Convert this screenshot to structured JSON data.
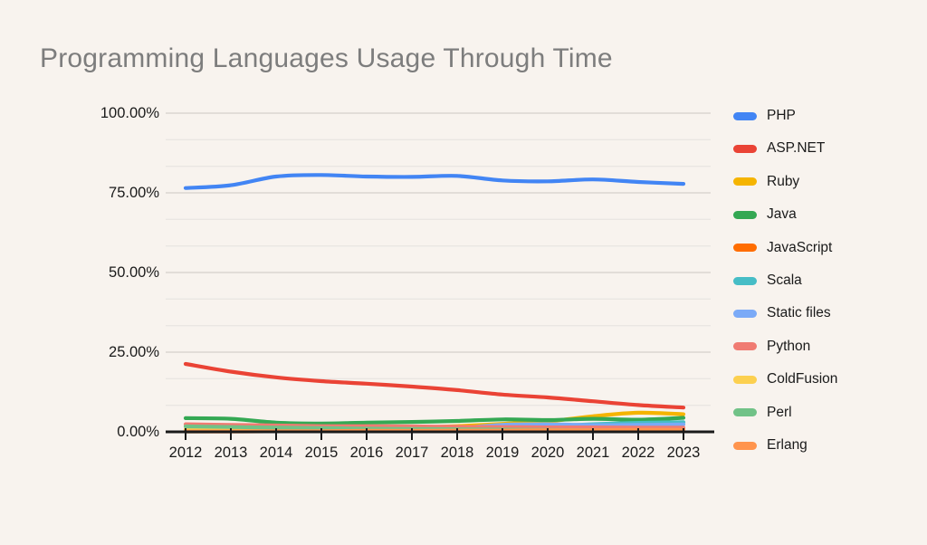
{
  "page": {
    "background_color": "#F8F3EE",
    "text_color": "#1A1A1A"
  },
  "chart_data": {
    "type": "line",
    "title": "Programming Languages Usage Through Time",
    "title_color": "#7D7D7D",
    "smooth": true,
    "grid": {
      "major_color": "#DAD6D1",
      "minor_color": "#EAE6E2",
      "minor_divisions_per_major": 3
    },
    "axis_color": "#1A1A1A",
    "legend_position": "right",
    "ylim": [
      0,
      100
    ],
    "y_ticks": [
      {
        "label": "100.00%",
        "value": 100
      },
      {
        "label": "75.00%",
        "value": 75
      },
      {
        "label": "50.00%",
        "value": 50
      },
      {
        "label": "25.00%",
        "value": 25
      },
      {
        "label": "0.00%",
        "value": 0
      }
    ],
    "categories": [
      "2012",
      "2013",
      "2014",
      "2015",
      "2016",
      "2017",
      "2018",
      "2019",
      "2020",
      "2021",
      "2022",
      "2023"
    ],
    "series": [
      {
        "name": "PHP",
        "color": "#4285F4",
        "values": [
          76.5,
          77.4,
          80.1,
          80.6,
          80.1,
          80.0,
          80.3,
          78.9,
          78.6,
          79.2,
          78.4,
          77.8
        ]
      },
      {
        "name": "ASP.NET",
        "color": "#EA4335",
        "values": [
          21.3,
          18.9,
          17.1,
          15.9,
          15.1,
          14.2,
          13.1,
          11.7,
          10.8,
          9.6,
          8.4,
          7.6
        ]
      },
      {
        "name": "Ruby",
        "color": "#F5B400",
        "values": [
          0.6,
          0.7,
          0.8,
          1.0,
          1.1,
          1.3,
          1.8,
          2.5,
          3.3,
          4.9,
          6.0,
          5.5
        ]
      },
      {
        "name": "Java",
        "color": "#34A853",
        "values": [
          4.3,
          4.1,
          2.9,
          2.6,
          2.9,
          3.1,
          3.4,
          3.9,
          3.7,
          4.1,
          3.8,
          4.4
        ]
      },
      {
        "name": "JavaScript",
        "color": "#FF6D01",
        "values": [
          0.2,
          0.2,
          0.3,
          0.4,
          0.4,
          0.5,
          0.6,
          0.7,
          0.7,
          0.8,
          0.9,
          1.0
        ]
      },
      {
        "name": "Scala",
        "color": "#46BDC6",
        "values": [
          0.1,
          0.2,
          0.2,
          0.3,
          0.5,
          0.7,
          1.0,
          1.4,
          1.8,
          2.4,
          2.8,
          3.0
        ]
      },
      {
        "name": "Static files",
        "color": "#7BAAF7",
        "values": [
          0.2,
          0.3,
          0.4,
          0.5,
          0.7,
          0.9,
          1.2,
          2.2,
          2.4,
          2.1,
          2.2,
          2.3
        ]
      },
      {
        "name": "Python",
        "color": "#F07B72",
        "values": [
          2.4,
          2.2,
          2.0,
          1.8,
          1.8,
          1.7,
          1.6,
          1.5,
          1.4,
          1.4,
          1.3,
          1.3
        ]
      },
      {
        "name": "ColdFusion",
        "color": "#FCD04F",
        "values": [
          0.8,
          0.8,
          0.7,
          0.7,
          0.6,
          0.6,
          0.5,
          0.5,
          0.4,
          0.4,
          0.3,
          0.3
        ]
      },
      {
        "name": "Perl",
        "color": "#71C287",
        "values": [
          1.7,
          1.5,
          1.3,
          1.2,
          1.0,
          0.9,
          0.8,
          0.7,
          0.6,
          0.5,
          0.4,
          0.3
        ]
      },
      {
        "name": "Erlang",
        "color": "#FF944D",
        "values": [
          0.1,
          0.1,
          0.2,
          0.2,
          0.3,
          0.3,
          0.4,
          0.4,
          0.5,
          0.5,
          0.6,
          0.6
        ]
      }
    ]
  }
}
